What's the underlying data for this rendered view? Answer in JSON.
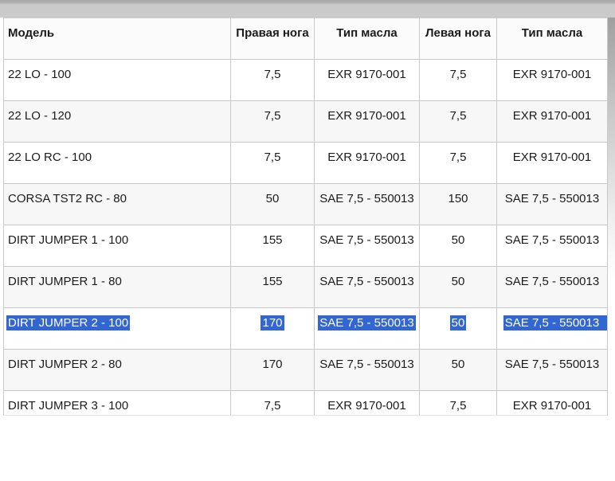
{
  "table": {
    "headers": [
      "Модель",
      "Правая нога",
      "Тип масла",
      "Левая нога",
      "Тип масла"
    ],
    "rows": [
      {
        "selected": false,
        "cells": [
          "22 LO - 100",
          "7,5",
          "EXR 9170-001",
          "7,5",
          "EXR 9170-001"
        ]
      },
      {
        "selected": false,
        "cells": [
          "22 LO - 120",
          "7,5",
          "EXR 9170-001",
          "7,5",
          "EXR 9170-001"
        ]
      },
      {
        "selected": false,
        "cells": [
          "22 LO RC - 100",
          "7,5",
          "EXR 9170-001",
          "7,5",
          "EXR 9170-001"
        ]
      },
      {
        "selected": false,
        "cells": [
          "CORSA TST2 RC - 80",
          "50",
          "SAE 7,5 - 550013",
          "150",
          "SAE 7,5 - 550013"
        ]
      },
      {
        "selected": false,
        "cells": [
          "DIRT JUMPER 1 - 100",
          "155",
          "SAE 7,5 - 550013",
          "50",
          "SAE 7,5 - 550013"
        ]
      },
      {
        "selected": false,
        "cells": [
          "DIRT JUMPER 1 - 80",
          "155",
          "SAE 7,5 - 550013",
          "50",
          "SAE 7,5 - 550013"
        ]
      },
      {
        "selected": true,
        "cells": [
          "DIRT JUMPER 2 - 100",
          "170",
          "SAE 7,5 - 550013",
          "50",
          "SAE 7,5 - 550013"
        ]
      },
      {
        "selected": false,
        "cells": [
          "DIRT JUMPER 2 - 80",
          "170",
          "SAE 7,5 - 550013",
          "50",
          "SAE 7,5 - 550013"
        ]
      },
      {
        "selected": false,
        "cells": [
          "DIRT JUMPER 3 - 100",
          "7,5",
          "EXR 9170-001",
          "7,5",
          "EXR 9170-001"
        ]
      }
    ]
  },
  "colors": {
    "selection_highlight": "#3166d3",
    "row_alt_background": "#f7f7f7",
    "header_background": "#fbfbfb",
    "cell_border": "#c9c9c9",
    "top_band": "#c9c9c9"
  }
}
